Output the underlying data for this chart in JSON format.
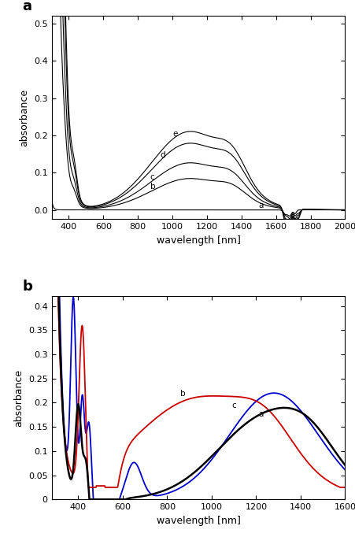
{
  "panel_a": {
    "xlabel": "wavelength [nm]",
    "ylabel": "absorbance",
    "xlim": [
      300,
      2000
    ],
    "ylim": [
      -0.025,
      0.52
    ],
    "yticks": [
      0.0,
      0.1,
      0.2,
      0.3,
      0.4,
      0.5
    ],
    "xticks": [
      400,
      600,
      800,
      1000,
      1200,
      1400,
      1600,
      1800,
      2000
    ],
    "label": "a"
  },
  "panel_b": {
    "xlabel": "wavelength [nm]",
    "ylabel": "absorbance",
    "xlim": [
      280,
      1600
    ],
    "ylim": [
      0,
      0.42
    ],
    "yticks": [
      0.0,
      0.05,
      0.1,
      0.15,
      0.2,
      0.25,
      0.3,
      0.35,
      0.4
    ],
    "xticks": [
      400,
      600,
      800,
      1000,
      1200,
      1400,
      1600
    ],
    "label": "b",
    "colors": [
      "#0000cc",
      "#cc0000",
      "#000000"
    ]
  }
}
